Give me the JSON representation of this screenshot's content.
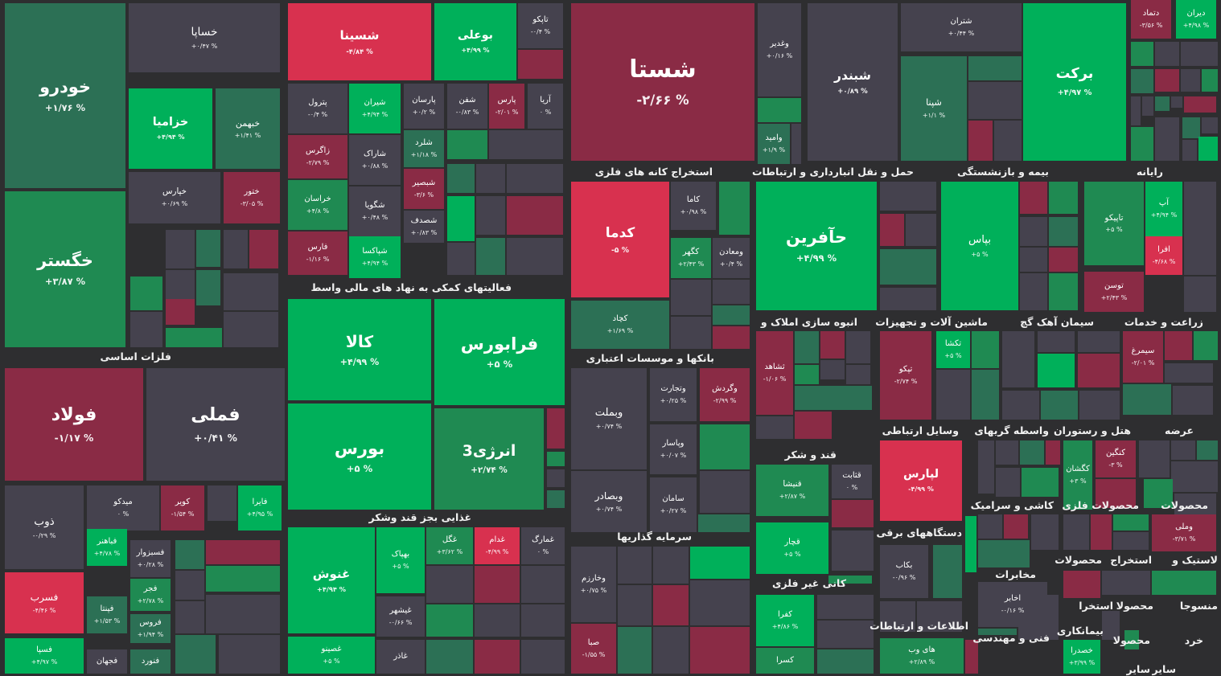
{
  "colors": {
    "up5": "#00b05a",
    "up": "#1f8a52",
    "upDark": "#2c7055",
    "flat": "#45424e",
    "down": "#8a2b45",
    "down5": "#d8314f",
    "bg": "#2e2e30",
    "text": "#ffffff"
  },
  "sections": [
    {
      "name": "فلزات اساسی"
    },
    {
      "name": "فعالیتهای کمکی به نهاد های مالی واسط"
    },
    {
      "name": "غذایی بجز قند وشکر"
    },
    {
      "name": "استخراج کانه های فلزی"
    },
    {
      "name": "بانکها و موسسات اعتباری"
    },
    {
      "name": "سرمایه گذاریها"
    },
    {
      "name": "حمل و نقل انبارداری و ارتباطات"
    },
    {
      "name": "بیمه و بازنشستگی"
    },
    {
      "name": "رایانه"
    },
    {
      "name": "انبوه سازی املاک و"
    },
    {
      "name": "ماشین آلات و تجهیزات"
    },
    {
      "name": "سیمان آهک گچ"
    },
    {
      "name": "زراعت و خدمات"
    },
    {
      "name": "وسایل ارتباطی"
    },
    {
      "name": "واسطه گریهای"
    },
    {
      "name": "هتل و رستوران"
    },
    {
      "name": "عرضه"
    },
    {
      "name": "قند و شکر"
    },
    {
      "name": "کاشی و سرامیک"
    },
    {
      "name": "محصولات فلزی"
    },
    {
      "name": "محصولات"
    },
    {
      "name": "دستگاههای برقی"
    },
    {
      "name": "کانی غیر فلزی"
    },
    {
      "name": "مخابرات"
    },
    {
      "name": "محصولات"
    },
    {
      "name": "استخراج"
    },
    {
      "name": "لاستیک و"
    },
    {
      "name": "اطلاعات و ارتباطات"
    },
    {
      "name": "فنی و مهندسی"
    },
    {
      "name": "بیمانکاری"
    },
    {
      "name": "منسوجا"
    },
    {
      "name": "محصولا"
    },
    {
      "name": "استخرا"
    },
    {
      "name": "خرد"
    },
    {
      "name": "محصولا"
    },
    {
      "name": "ساير"
    },
    {
      "name": "ساير"
    }
  ],
  "tiles": [
    {
      "name": "خودرو",
      "pct": "+۱/۷۶ %",
      "color": "upDark"
    },
    {
      "name": "خگستر",
      "pct": "+۳/۸۷ %",
      "color": "up"
    },
    {
      "name": "خساپا",
      "pct": "+۰/۴۷ %",
      "color": "flat"
    },
    {
      "name": "خزامیا",
      "pct": "+۴/۹۴ %",
      "color": "up5"
    },
    {
      "name": "خبهمن",
      "pct": "+۱/۴۱ %",
      "color": "upDark"
    },
    {
      "name": "خپارس",
      "pct": "+۰/۶۹ %",
      "color": "flat"
    },
    {
      "name": "ختور",
      "pct": "-۳/۰۵ %",
      "color": "down"
    },
    {
      "name": "فولاد",
      "pct": "-۱/۱۷ %",
      "color": "down"
    },
    {
      "name": "فملی",
      "pct": "+۰/۴۱ %",
      "color": "flat"
    },
    {
      "name": "ذوب",
      "pct": "-۰/۲۹ %",
      "color": "flat"
    },
    {
      "name": "میدکو",
      "pct": "۰ %",
      "color": "flat"
    },
    {
      "name": "کویر",
      "pct": "-۱/۵۴ %",
      "color": "down"
    },
    {
      "name": "فایرا",
      "pct": "+۴/۹۵ %",
      "color": "up5"
    },
    {
      "name": "فسرب",
      "pct": "-۴/۴۶ %",
      "color": "down5"
    },
    {
      "name": "فباهنر",
      "pct": "+۴/۷۸ %",
      "color": "up5"
    },
    {
      "name": "فسبزوار",
      "pct": "+۰/۲۸ %",
      "color": "flat"
    },
    {
      "name": "فجر",
      "pct": "+۲/۷۸ %",
      "color": "up"
    },
    {
      "name": "فپنتا",
      "pct": "+۱/۵۳ %",
      "color": "upDark"
    },
    {
      "name": "فروس",
      "pct": "+۱/۹۴ %",
      "color": "upDark"
    },
    {
      "name": "فسپا",
      "pct": "+۴/۹۷ %",
      "color": "up5"
    },
    {
      "name": "فجهان",
      "pct": "",
      "color": "flat"
    },
    {
      "name": "فنورد",
      "pct": "",
      "color": "upDark"
    },
    {
      "name": "شسینا",
      "pct": "-۴/۸۴ %",
      "color": "down5"
    },
    {
      "name": "بوعلی",
      "pct": "+۴/۹۹ %",
      "color": "up5"
    },
    {
      "name": "تاپکو",
      "pct": "-۰/۴ %",
      "color": "flat"
    },
    {
      "name": "پترول",
      "pct": "-۰/۴ %",
      "color": "flat"
    },
    {
      "name": "شیران",
      "pct": "+۴/۹۴ %",
      "color": "up5"
    },
    {
      "name": "پارسان",
      "pct": "+۰/۲ %",
      "color": "flat"
    },
    {
      "name": "شفن",
      "pct": "-۰/۸۳ %",
      "color": "flat"
    },
    {
      "name": "پارس",
      "pct": "-۲/۰۱ %",
      "color": "down"
    },
    {
      "name": "آریا",
      "pct": "۰ %",
      "color": "flat"
    },
    {
      "name": "زاگرس",
      "pct": "-۲/۷۹ %",
      "color": "down"
    },
    {
      "name": "شاراک",
      "pct": "+۰/۸۸ %",
      "color": "flat"
    },
    {
      "name": "شلرد",
      "pct": "+۱/۱۸ %",
      "color": "upDark"
    },
    {
      "name": "شبصیر",
      "pct": "-۳/۶ %",
      "color": "down"
    },
    {
      "name": "خراسان",
      "pct": "+۴/۸ %",
      "color": "up"
    },
    {
      "name": "شگویا",
      "pct": "+۰/۴۸ %",
      "color": "flat"
    },
    {
      "name": "شصدف",
      "pct": "+۰/۸۳ %",
      "color": "flat"
    },
    {
      "name": "فارس",
      "pct": "-۱/۱۶ %",
      "color": "down"
    },
    {
      "name": "شپاکسا",
      "pct": "+۴/۹۴ %",
      "color": "up5"
    },
    {
      "name": "کالا",
      "pct": "+۴/۹۹ %",
      "color": "up5"
    },
    {
      "name": "فرابورس",
      "pct": "+۵ %",
      "color": "up5"
    },
    {
      "name": "بورس",
      "pct": "+۵ %",
      "color": "up5"
    },
    {
      "name": "انرژی3",
      "pct": "+۲/۷۴ %",
      "color": "up"
    },
    {
      "name": "غنوش",
      "pct": "+۴/۹۴ %",
      "color": "up5"
    },
    {
      "name": "بهپاک",
      "pct": "+۵ %",
      "color": "up5"
    },
    {
      "name": "غگل",
      "pct": "+۳/۶۲ %",
      "color": "up"
    },
    {
      "name": "غدام",
      "pct": "-۴/۹۹ %",
      "color": "down5"
    },
    {
      "name": "غمارگ",
      "pct": "۰ %",
      "color": "flat"
    },
    {
      "name": "غیشهر",
      "pct": "-۰/۶۶ %",
      "color": "flat"
    },
    {
      "name": "غصینو",
      "pct": "+۵ %",
      "color": "up5"
    },
    {
      "name": "غاذر",
      "pct": "",
      "color": "flat"
    },
    {
      "name": "شستا",
      "pct": "-۲/۶۶ %",
      "color": "down"
    },
    {
      "name": "کدما",
      "pct": "-۵ %",
      "color": "down5"
    },
    {
      "name": "کاما",
      "pct": "+۰/۹۸ %",
      "color": "flat"
    },
    {
      "name": "کگهر",
      "pct": "+۲/۴۳ %",
      "color": "up"
    },
    {
      "name": "ومعادن",
      "pct": "+۰/۴ %",
      "color": "flat"
    },
    {
      "name": "کچاد",
      "pct": "+۱/۶۹ %",
      "color": "upDark"
    },
    {
      "name": "وبملت",
      "pct": "+۰/۷۴ %",
      "color": "flat"
    },
    {
      "name": "وتجارت",
      "pct": "+۰/۲۵ %",
      "color": "flat"
    },
    {
      "name": "وگردش",
      "pct": "-۲/۹۹ %",
      "color": "down"
    },
    {
      "name": "وپاسار",
      "pct": "+۰/۰۷ %",
      "color": "flat"
    },
    {
      "name": "وبصادر",
      "pct": "+۰/۷۴ %",
      "color": "flat"
    },
    {
      "name": "سامان",
      "pct": "+۰/۲۷ %",
      "color": "flat"
    },
    {
      "name": "وخارزم",
      "pct": "+۰/۷۵ %",
      "color": "flat"
    },
    {
      "name": "صبا",
      "pct": "-۱/۵۵ %",
      "color": "down"
    },
    {
      "name": "وغدیر",
      "pct": "+۰/۱۶ %",
      "color": "flat"
    },
    {
      "name": "وامید",
      "pct": "+۱/۹ %",
      "color": "upDark"
    },
    {
      "name": "شبندر",
      "pct": "+۰/۸۹ %",
      "color": "flat"
    },
    {
      "name": "شتران",
      "pct": "+۰/۴۴ %",
      "color": "flat"
    },
    {
      "name": "شپنا",
      "pct": "+۱/۱ %",
      "color": "upDark"
    },
    {
      "name": "برکت",
      "pct": "+۴/۹۷ %",
      "color": "up5"
    },
    {
      "name": "دتماد",
      "pct": "-۳/۵۶ %",
      "color": "down"
    },
    {
      "name": "دیران",
      "pct": "+۴/۹۸ %",
      "color": "up5"
    },
    {
      "name": "حآفرین",
      "pct": "+۴/۹۹ %",
      "color": "up5"
    },
    {
      "name": "بپاس",
      "pct": "+۵ %",
      "color": "up5"
    },
    {
      "name": "تاپیکو",
      "pct": "+۵ %",
      "color": "up"
    },
    {
      "name": "آپ",
      "pct": "+۴/۹۴ %",
      "color": "up5"
    },
    {
      "name": "افرا",
      "pct": "-۴/۶۸ %",
      "color": "down5"
    },
    {
      "name": "توسن",
      "pct": "+۲/۴۳ %",
      "color": "down"
    },
    {
      "name": "ثشاهد",
      "pct": "-۱/۰۶ %",
      "color": "down"
    },
    {
      "name": "تپکو",
      "pct": "-۲/۷۴ %",
      "color": "down"
    },
    {
      "name": "تکشا",
      "pct": "+۵ %",
      "color": "up5"
    },
    {
      "name": "سیمرغ",
      "pct": "-۲/۰۱ %",
      "color": "down"
    },
    {
      "name": "قنیشا",
      "pct": "+۲/۸۷ %",
      "color": "up"
    },
    {
      "name": "قثابت",
      "pct": "۰ %",
      "color": "flat"
    },
    {
      "name": "قچار",
      "pct": "+۵ %",
      "color": "up5"
    },
    {
      "name": "لپارس",
      "pct": "-۴/۹۹ %",
      "color": "down5"
    },
    {
      "name": "بکاب",
      "pct": "-۰/۹۶ %",
      "color": "flat"
    },
    {
      "name": "کگشان",
      "pct": "+۳ %",
      "color": "up"
    },
    {
      "name": "کنگین",
      "pct": "-۳ %",
      "color": "down"
    },
    {
      "name": "وملی",
      "pct": "-۳/۷۱ %",
      "color": "down"
    },
    {
      "name": "اخابر",
      "pct": "-۰/۱۶ %",
      "color": "flat"
    },
    {
      "name": "کفرا",
      "pct": "+۴/۸۶ %",
      "color": "up5"
    },
    {
      "name": "کسرا",
      "pct": "",
      "color": "up"
    },
    {
      "name": "های وب",
      "pct": "+۲/۸۹ %",
      "color": "up"
    },
    {
      "name": "خصدرا",
      "pct": "+۳/۹۹ %",
      "color": "up5"
    }
  ],
  "filler_colors": [
    "flat",
    "upDark",
    "flat",
    "down",
    "up",
    "flat",
    "upDark",
    "flat",
    "down",
    "flat",
    "up",
    "flat",
    "flat",
    "upDark",
    "down",
    "flat",
    "up",
    "flat",
    "flat",
    "upDark",
    "flat",
    "down",
    "up",
    "flat",
    "upDark",
    "flat",
    "flat",
    "up5",
    "flat",
    "down"
  ]
}
